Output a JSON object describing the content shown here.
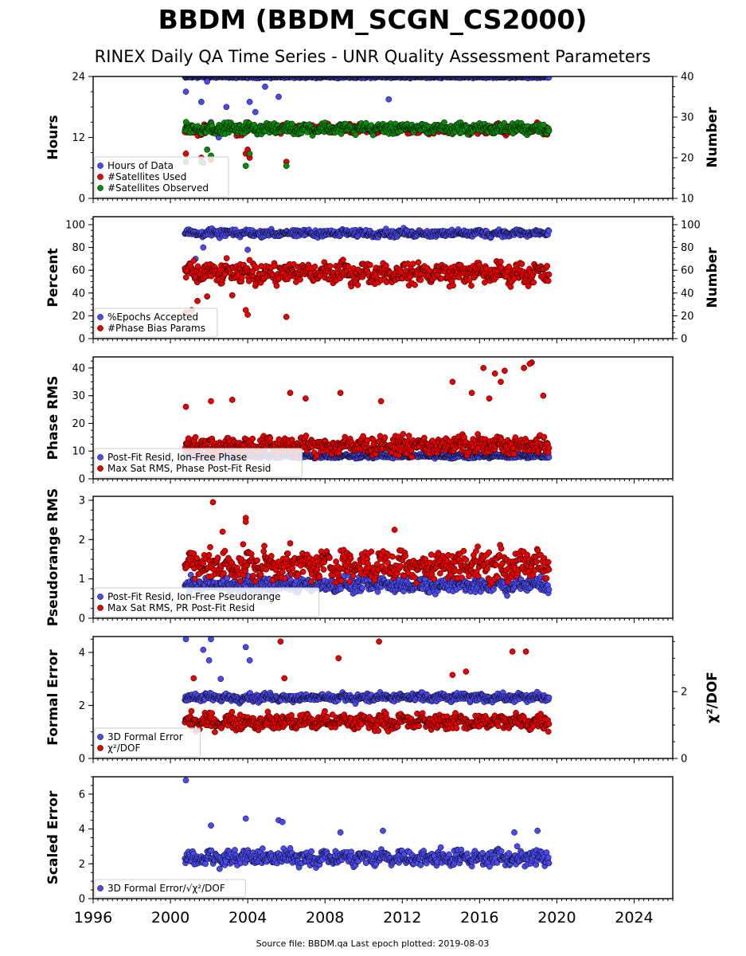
{
  "title": "BBDM (BBDM_SCGN_CS2000)",
  "subtitle": "RINEX Daily QA Time Series - UNR Quality Assessment Parameters",
  "footer": "Source file: BBDM.qa Last epoch plotted: 2019-08-03",
  "colors": {
    "blue": "#4a4aee",
    "red": "#e80000",
    "green": "#0a8a0a",
    "edge": "#000000"
  },
  "chart_data": [
    {
      "type": "scatter",
      "ylabel": "Hours",
      "y2label": "Number",
      "xlim": [
        1996,
        2026
      ],
      "ylim": [
        0,
        24
      ],
      "y2lim": [
        10,
        40
      ],
      "yticks": [
        0,
        12,
        24
      ],
      "y2ticks": [
        10,
        20,
        30,
        40
      ],
      "legend": "lower-left",
      "series": [
        {
          "name": "Hours of Data",
          "color": "blue",
          "axis": "left",
          "start": 2000.75,
          "end": 2019.59,
          "base": 24,
          "spread": 0.2,
          "outliers": [
            [
              2000.8,
              21
            ],
            [
              2001.9,
              23
            ],
            [
              2001.6,
              19
            ],
            [
              2002.1,
              15
            ],
            [
              2002.9,
              18
            ],
            [
              2004.1,
              19
            ],
            [
              2004.4,
              17
            ],
            [
              2004.9,
              22
            ],
            [
              2005.6,
              20
            ],
            [
              2011.3,
              19.5
            ],
            [
              2001.7,
              7
            ],
            [
              2002.5,
              12
            ]
          ]
        },
        {
          "name": "#Satellites Used",
          "color": "red",
          "axis": "right",
          "start": 2000.75,
          "end": 2019.59,
          "base": 27,
          "spread": 0.9,
          "outliers": [
            [
              2000.8,
              21
            ],
            [
              2001.6,
              20
            ],
            [
              2002.1,
              19.5
            ],
            [
              2003.9,
              21
            ],
            [
              2004.0,
              22
            ],
            [
              2006.0,
              19
            ],
            [
              2004.1,
              20
            ]
          ]
        },
        {
          "name": "#Satellites Observed",
          "color": "green",
          "axis": "right",
          "start": 2000.75,
          "end": 2019.59,
          "base": 27.2,
          "spread": 1.0,
          "outliers": [
            [
              2000.8,
              19
            ],
            [
              2001.6,
              19
            ],
            [
              2001.9,
              22
            ],
            [
              2002.1,
              20.5
            ],
            [
              2003.9,
              18
            ],
            [
              2004.1,
              21
            ],
            [
              2006.0,
              18
            ]
          ]
        }
      ]
    },
    {
      "type": "scatter",
      "ylabel": "Percent",
      "y2label": "Number",
      "xlim": [
        1996,
        2026
      ],
      "ylim": [
        0,
        107
      ],
      "y2lim": [
        0,
        107
      ],
      "yticks": [
        0,
        20,
        40,
        60,
        80,
        100
      ],
      "y2ticks": [
        0,
        20,
        40,
        60,
        80,
        100
      ],
      "legend": "lower-left",
      "series": [
        {
          "name": "%Epochs Accepted",
          "color": "blue",
          "axis": "left",
          "start": 2000.75,
          "end": 2019.59,
          "base": 92.5,
          "spread": 2.5,
          "outliers": [
            [
              2001.3,
              70
            ],
            [
              2001.7,
              80
            ],
            [
              2004.0,
              78
            ]
          ]
        },
        {
          "name": "#Phase Bias Params",
          "color": "red",
          "axis": "right",
          "start": 2000.75,
          "end": 2019.59,
          "base": 57.5,
          "spread": 7,
          "outliers": [
            [
              2000.8,
              23
            ],
            [
              2001.1,
              25
            ],
            [
              2001.4,
              33
            ],
            [
              2001.9,
              37
            ],
            [
              2003.9,
              25
            ],
            [
              2004.0,
              21
            ],
            [
              2006.0,
              19
            ],
            [
              2003.2,
              38
            ]
          ]
        }
      ]
    },
    {
      "type": "scatter",
      "ylabel": "Phase RMS",
      "xlim": [
        1996,
        2026
      ],
      "ylim": [
        0,
        44
      ],
      "yticks": [
        0,
        10,
        20,
        30,
        40
      ],
      "legend": "lower-left",
      "series": [
        {
          "name": "Post-Fit Resid, Ion-Free Phase",
          "color": "blue",
          "axis": "left",
          "start": 2000.75,
          "end": 2019.59,
          "base": 8.2,
          "spread": 0.6,
          "outliers": []
        },
        {
          "name": "Max Sat RMS, Phase Post-Fit Resid",
          "color": "red",
          "axis": "left",
          "start": 2000.75,
          "end": 2019.59,
          "base": 12,
          "spread": 2.5,
          "outliers": [
            [
              2016.2,
              40
            ],
            [
              2017.3,
              39
            ],
            [
              2018.3,
              40
            ],
            [
              2018.7,
              42
            ],
            [
              2018.6,
              41.5
            ],
            [
              2016.8,
              38
            ],
            [
              2017.1,
              35
            ],
            [
              2014.6,
              35
            ],
            [
              2008.8,
              31
            ],
            [
              2006.2,
              31
            ],
            [
              2002.1,
              28
            ],
            [
              2003.2,
              28.5
            ],
            [
              2007.0,
              29
            ],
            [
              2010.9,
              28
            ],
            [
              2015.6,
              31
            ],
            [
              2019.3,
              30
            ],
            [
              2000.8,
              26
            ],
            [
              2016.5,
              29
            ]
          ]
        }
      ]
    },
    {
      "type": "scatter",
      "ylabel": "Pseudorange RMS",
      "xlim": [
        1996,
        2026
      ],
      "ylim": [
        0,
        3.1
      ],
      "yticks": [
        0,
        1,
        2,
        3
      ],
      "legend": "lower-left",
      "series": [
        {
          "name": "Post-Fit Resid, Ion-Free Pseudorange",
          "color": "blue",
          "axis": "left",
          "start": 2000.75,
          "end": 2019.59,
          "base": 0.85,
          "spread": 0.15,
          "outliers": []
        },
        {
          "name": "Max Sat RMS, PR Post-Fit Resid",
          "color": "red",
          "axis": "left",
          "start": 2000.75,
          "end": 2019.59,
          "base": 1.35,
          "spread": 0.3,
          "outliers": [
            [
              2002.2,
              2.95
            ],
            [
              2003.9,
              2.55
            ],
            [
              2003.9,
              2.45
            ],
            [
              2002.7,
              2.2
            ],
            [
              2011.6,
              2.25
            ]
          ]
        }
      ]
    },
    {
      "type": "scatter",
      "ylabel": "Formal Error",
      "y2label": "χ²/DOF",
      "xlim": [
        1996,
        2026
      ],
      "ylim": [
        0,
        4.6
      ],
      "y2lim": [
        0,
        3.65
      ],
      "yticks": [
        0,
        2,
        4
      ],
      "y2ticks": [
        0,
        2
      ],
      "legend": "lower-left",
      "series": [
        {
          "name": "3D Formal Error",
          "color": "blue",
          "axis": "left",
          "start": 2000.75,
          "end": 2019.59,
          "base": 2.3,
          "spread": 0.12,
          "outliers": [
            [
              2000.8,
              4.5
            ],
            [
              2002.1,
              4.5
            ],
            [
              2003.9,
              4.2
            ],
            [
              2001.7,
              4.1
            ],
            [
              2002.0,
              3.7
            ],
            [
              2004.1,
              3.7
            ],
            [
              2002.6,
              3.0
            ]
          ]
        },
        {
          "name": "χ²/DOF",
          "color": "red",
          "axis": "right",
          "start": 2000.75,
          "end": 2019.59,
          "base": 1.1,
          "spread": 0.18,
          "outliers": [
            [
              2005.7,
              3.5
            ],
            [
              2010.8,
              3.5
            ],
            [
              2008.7,
              3.0
            ],
            [
              2017.7,
              3.2
            ],
            [
              2018.4,
              3.2
            ],
            [
              2014.6,
              2.5
            ],
            [
              2015.3,
              2.6
            ],
            [
              2005.9,
              2.4
            ],
            [
              2001.2,
              2.4
            ]
          ]
        }
      ]
    },
    {
      "type": "scatter",
      "ylabel": "Scaled Error",
      "xlim": [
        1996,
        2026
      ],
      "ylim": [
        0,
        7
      ],
      "yticks": [
        0,
        2,
        4,
        6
      ],
      "xticks": [
        1996,
        2000,
        2004,
        2008,
        2012,
        2016,
        2020,
        2024
      ],
      "legend": "lower-left",
      "series": [
        {
          "name": "3D Formal Error/√χ²/DOF",
          "color": "blue",
          "axis": "left",
          "start": 2000.75,
          "end": 2019.59,
          "base": 2.35,
          "spread": 0.35,
          "outliers": [
            [
              2000.8,
              6.8
            ],
            [
              2003.9,
              4.6
            ],
            [
              2005.6,
              4.5
            ],
            [
              2005.8,
              4.4
            ],
            [
              2002.1,
              4.2
            ],
            [
              2008.8,
              3.8
            ],
            [
              2011.0,
              3.9
            ],
            [
              2019.0,
              3.9
            ],
            [
              2017.8,
              3.8
            ]
          ]
        }
      ]
    }
  ]
}
